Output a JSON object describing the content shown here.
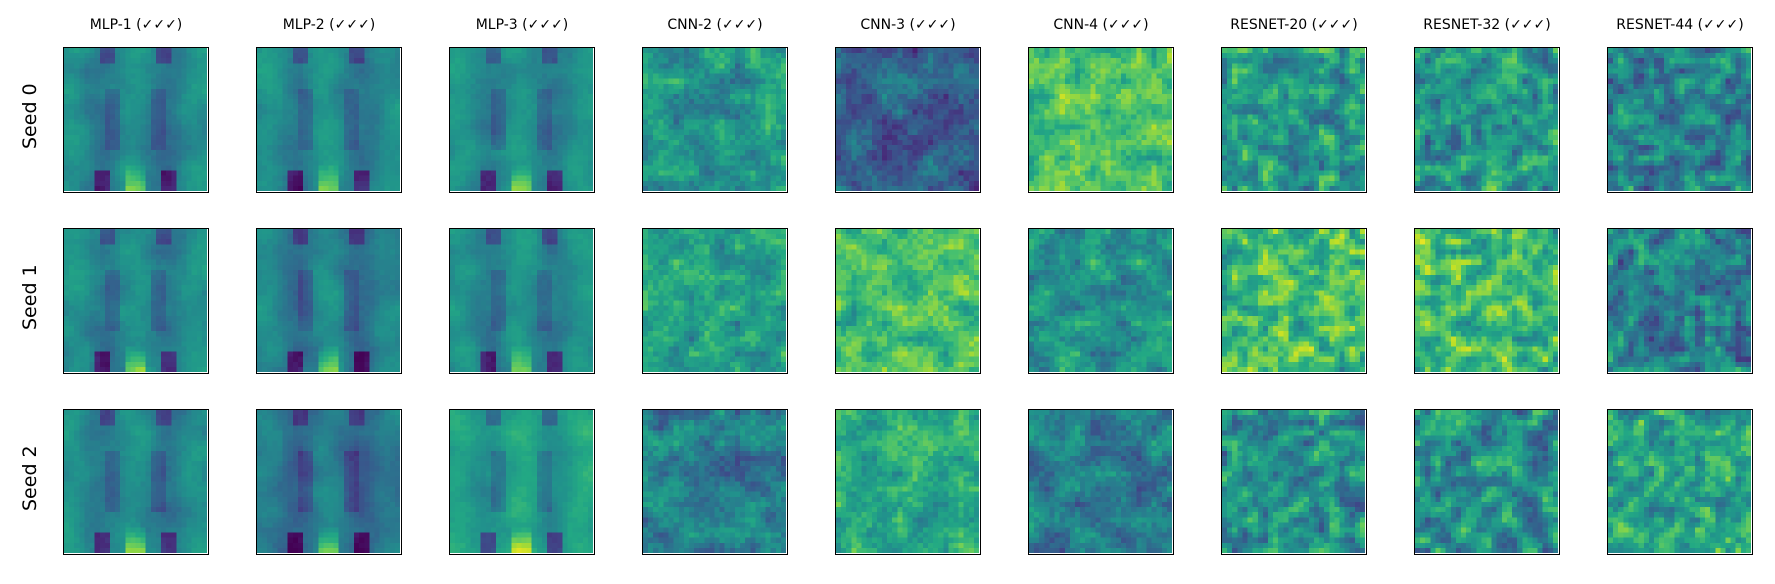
{
  "chart_data": {
    "type": "heatmap",
    "title": "",
    "columns": [
      "MLP-1 (✓✓✓)",
      "MLP-2 (✓✓✓)",
      "MLP-3 (✓✓✓)",
      "CNN-2 (✓✓✓)",
      "CNN-3 (✓✓✓)",
      "CNN-4 (✓✓✓)",
      "RESNET-20 (✓✓✓)",
      "RESNET-32 (✓✓✓)",
      "RESNET-44 (✓✓✓)"
    ],
    "rows": [
      "Seed 0",
      "Seed 1",
      "Seed 2"
    ],
    "colormap": "viridis",
    "grid_resolution": 28,
    "axes_ticks": false
  }
}
